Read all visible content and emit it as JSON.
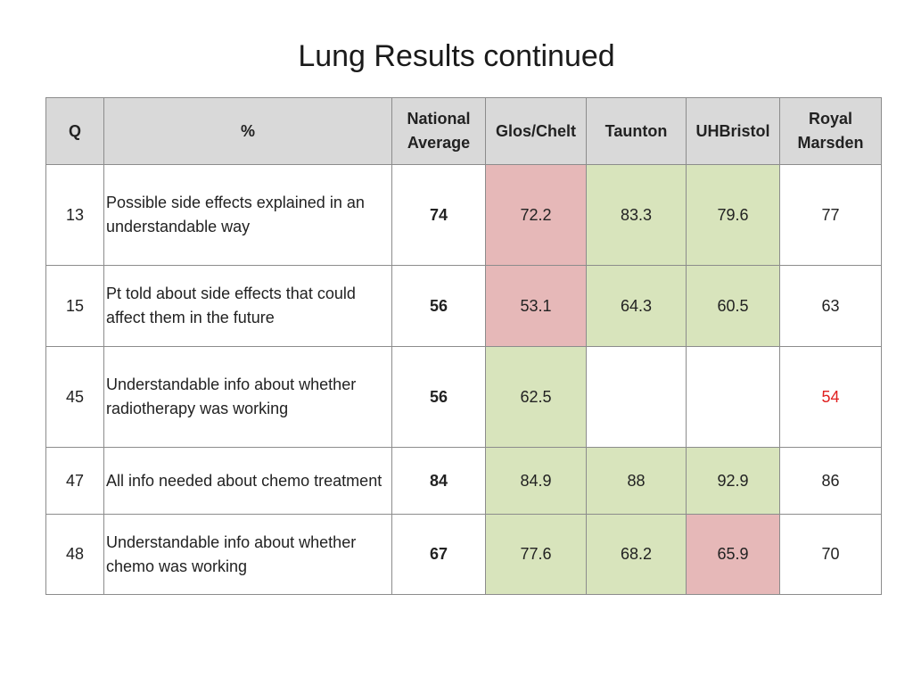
{
  "slide": {
    "title": "Lung Results continued"
  },
  "colors": {
    "header_bg": "#d9d9d9",
    "below_average": "#e6b8b8",
    "above_average": "#d8e4bc",
    "highlight_text": "#e02020"
  },
  "table": {
    "headers": {
      "q": "Q",
      "pct": "%",
      "national_line1": "National",
      "national_line2": "Average",
      "glos": "Glos/Chelt",
      "taunton": "Taunton",
      "uhbristol": "UHBristol",
      "royal_line1": "Royal",
      "royal_line2": "Marsden"
    },
    "rows": [
      {
        "q": "13",
        "text": "Possible side effects explained in an understandable way",
        "national": "74",
        "glos": "72.2",
        "glos_status": "red",
        "taunton": "83.3",
        "taunton_status": "green",
        "uhbristol": "79.6",
        "uhbristol_status": "green",
        "royal": "77",
        "royal_status": "normal"
      },
      {
        "q": "15",
        "text": "Pt told about side effects that could affect them in the future",
        "national": "56",
        "glos": "53.1",
        "glos_status": "red",
        "taunton": "64.3",
        "taunton_status": "green",
        "uhbristol": "60.5",
        "uhbristol_status": "green",
        "royal": "63",
        "royal_status": "normal"
      },
      {
        "q": "45",
        "text": "Understandable info about whether radiotherapy was working",
        "national": "56",
        "glos": "62.5",
        "glos_status": "green",
        "taunton": "",
        "taunton_status": "white",
        "uhbristol": "",
        "uhbristol_status": "white",
        "royal": "54",
        "royal_status": "red-text"
      },
      {
        "q": "47",
        "text": "All info needed about chemo treatment",
        "national": "84",
        "glos": "84.9",
        "glos_status": "green",
        "taunton": "88",
        "taunton_status": "green",
        "uhbristol": "92.9",
        "uhbristol_status": "green",
        "royal": "86",
        "royal_status": "normal"
      },
      {
        "q": "48",
        "text": "Understandable info about whether chemo was working",
        "national": "67",
        "glos": "77.6",
        "glos_status": "green",
        "taunton": "68.2",
        "taunton_status": "green",
        "uhbristol": "65.9",
        "uhbristol_status": "red",
        "royal": "70",
        "royal_status": "normal"
      }
    ]
  }
}
